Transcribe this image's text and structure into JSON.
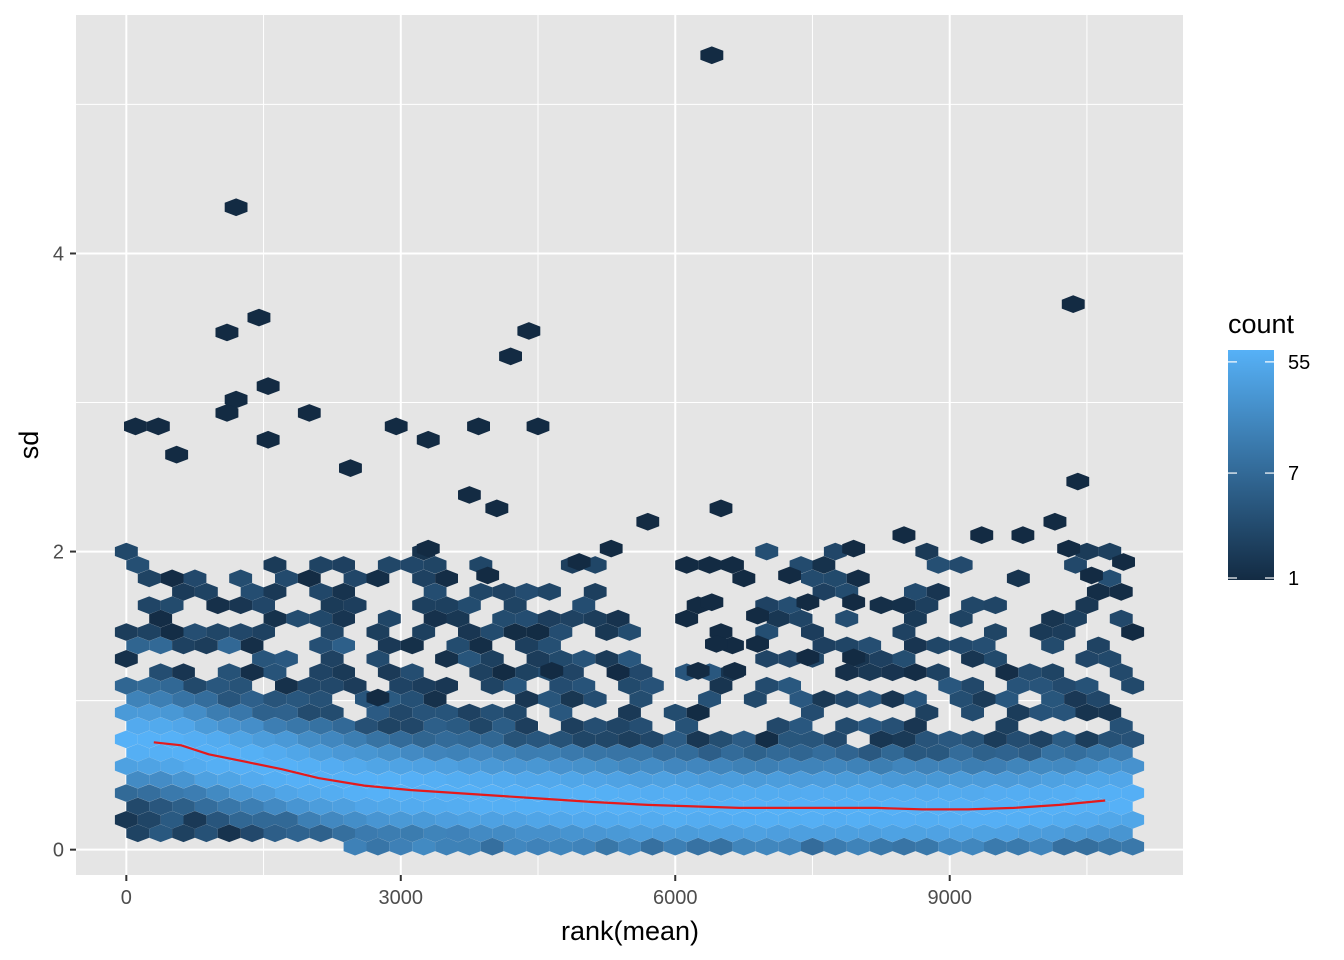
{
  "chart_data": {
    "type": "hexbin",
    "xlabel": "rank(mean)",
    "ylabel": "sd",
    "xlim": [
      -550,
      11550
    ],
    "ylim": [
      -0.17,
      5.6
    ],
    "x_ticks": [
      0,
      3000,
      6000,
      9000
    ],
    "x_tick_labels": [
      "0",
      "3000",
      "6000",
      "9000"
    ],
    "y_ticks": [
      0,
      2,
      4
    ],
    "y_tick_labels": [
      "0",
      "2",
      "4"
    ],
    "grid": true,
    "legend": {
      "title": "count",
      "placement": "right",
      "ticks": [
        55,
        7,
        1
      ],
      "tick_labels": [
        "55",
        "7",
        "1"
      ],
      "color_low": "#132B43",
      "color_high": "#56B1F7"
    },
    "colors": {
      "panel_bg": "#E5E5E5",
      "grid": "#FFFFFF",
      "trend": "#E41A1C"
    },
    "trend_line": {
      "x": [
        300,
        600,
        900,
        1300,
        1700,
        2100,
        2600,
        3100,
        3600,
        4100,
        4600,
        5100,
        5700,
        6200,
        6700,
        7200,
        7700,
        8200,
        8700,
        9200,
        9700,
        10200,
        10700
      ],
      "y": [
        0.72,
        0.7,
        0.64,
        0.59,
        0.54,
        0.48,
        0.43,
        0.4,
        0.38,
        0.36,
        0.34,
        0.32,
        0.3,
        0.29,
        0.28,
        0.28,
        0.28,
        0.28,
        0.27,
        0.27,
        0.28,
        0.3,
        0.33
      ]
    },
    "outliers": [
      {
        "x": 6400,
        "y": 5.33
      },
      {
        "x": 1200,
        "y": 4.31
      },
      {
        "x": 10350,
        "y": 3.66
      },
      {
        "x": 1100,
        "y": 3.47
      },
      {
        "x": 1450,
        "y": 3.57
      },
      {
        "x": 4400,
        "y": 3.48
      },
      {
        "x": 4200,
        "y": 3.31
      },
      {
        "x": 1550,
        "y": 3.11
      },
      {
        "x": 1200,
        "y": 3.02
      },
      {
        "x": 1100,
        "y": 2.93
      },
      {
        "x": 2000,
        "y": 2.93
      },
      {
        "x": 100,
        "y": 2.84
      },
      {
        "x": 350,
        "y": 2.84
      },
      {
        "x": 2950,
        "y": 2.84
      },
      {
        "x": 3850,
        "y": 2.84
      },
      {
        "x": 4500,
        "y": 2.84
      },
      {
        "x": 3300,
        "y": 2.75
      },
      {
        "x": 1550,
        "y": 2.75
      },
      {
        "x": 550,
        "y": 2.65
      },
      {
        "x": 2450,
        "y": 2.56
      },
      {
        "x": 10400,
        "y": 2.47
      },
      {
        "x": 3750,
        "y": 2.38
      },
      {
        "x": 6500,
        "y": 2.29
      },
      {
        "x": 4050,
        "y": 2.29
      },
      {
        "x": 5700,
        "y": 2.2
      },
      {
        "x": 10150,
        "y": 2.2
      },
      {
        "x": 8500,
        "y": 2.11
      },
      {
        "x": 9350,
        "y": 2.11
      },
      {
        "x": 9800,
        "y": 2.11
      },
      {
        "x": 7950,
        "y": 2.02
      },
      {
        "x": 10300,
        "y": 2.02
      },
      {
        "x": 3300,
        "y": 2.02
      },
      {
        "x": 5300,
        "y": 2.02
      },
      {
        "x": 10900,
        "y": 1.93
      },
      {
        "x": 4950,
        "y": 1.93
      },
      {
        "x": 7250,
        "y": 1.84
      },
      {
        "x": 10550,
        "y": 1.84
      },
      {
        "x": 3950,
        "y": 1.84
      },
      {
        "x": 6400,
        "y": 1.66
      },
      {
        "x": 7450,
        "y": 1.66
      },
      {
        "x": 7950,
        "y": 1.66
      },
      {
        "x": 6900,
        "y": 1.57
      },
      {
        "x": 6450,
        "y": 1.38
      },
      {
        "x": 6900,
        "y": 1.38
      },
      {
        "x": 7450,
        "y": 1.29
      },
      {
        "x": 7950,
        "y": 1.29
      },
      {
        "x": 6250,
        "y": 1.2
      },
      {
        "x": 6650,
        "y": 1.2
      },
      {
        "x": 2750,
        "y": 1.02
      },
      {
        "x": 4650,
        "y": 1.2
      }
    ]
  }
}
